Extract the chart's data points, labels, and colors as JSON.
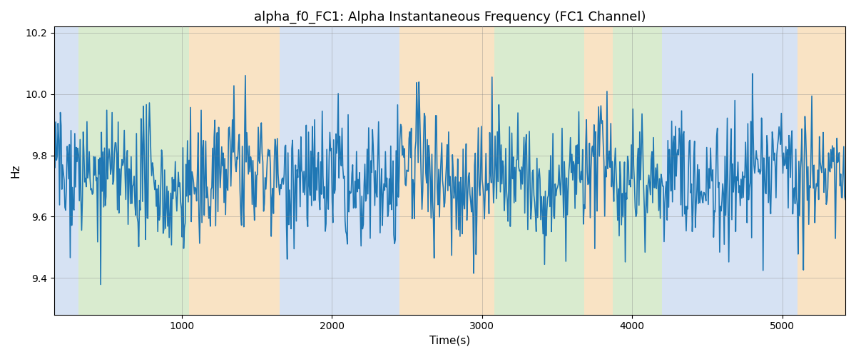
{
  "title": "alpha_f0_FC1: Alpha Instantaneous Frequency (FC1 Channel)",
  "xlabel": "Time(s)",
  "ylabel": "Hz",
  "ylim": [
    9.28,
    10.22
  ],
  "xlim": [
    150,
    5420
  ],
  "yticks": [
    9.4,
    9.6,
    9.8,
    10.0,
    10.2
  ],
  "xticks": [
    1000,
    2000,
    3000,
    4000,
    5000
  ],
  "line_color": "#1f77b4",
  "line_width": 1.2,
  "seed": 42,
  "n_points": 1040,
  "t_start": 150,
  "t_end": 5420,
  "mean_freq": 9.72,
  "bands": [
    {
      "xmin": 150,
      "xmax": 310,
      "color": "#aec6e8",
      "alpha": 0.5
    },
    {
      "xmin": 310,
      "xmax": 1050,
      "color": "#b5d9a1",
      "alpha": 0.5
    },
    {
      "xmin": 1050,
      "xmax": 1650,
      "color": "#f5c98a",
      "alpha": 0.5
    },
    {
      "xmin": 1650,
      "xmax": 2450,
      "color": "#aec6e8",
      "alpha": 0.5
    },
    {
      "xmin": 2450,
      "xmax": 3080,
      "color": "#f5c98a",
      "alpha": 0.5
    },
    {
      "xmin": 3080,
      "xmax": 3680,
      "color": "#b5d9a1",
      "alpha": 0.5
    },
    {
      "xmin": 3680,
      "xmax": 3870,
      "color": "#f5c98a",
      "alpha": 0.5
    },
    {
      "xmin": 3870,
      "xmax": 4200,
      "color": "#b5d9a1",
      "alpha": 0.5
    },
    {
      "xmin": 4200,
      "xmax": 5100,
      "color": "#aec6e8",
      "alpha": 0.5
    },
    {
      "xmin": 5100,
      "xmax": 5420,
      "color": "#f5c98a",
      "alpha": 0.5
    }
  ],
  "figsize": [
    12.0,
    5.0
  ],
  "dpi": 100
}
